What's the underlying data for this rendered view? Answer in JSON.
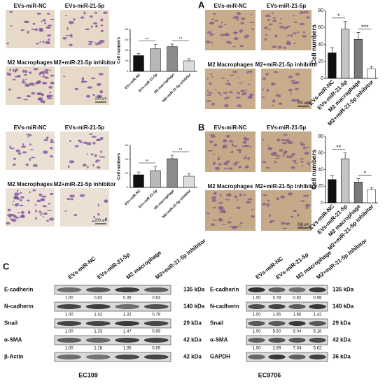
{
  "panel_labels": [
    "A",
    "B",
    "C"
  ],
  "image_grids": [
    {
      "labels": [
        "EVs-miR-NC",
        "EVs-miR-21-5p",
        "M2 Macrophages",
        "M2+miR-21-5p inhibitor"
      ],
      "scale_bar": "200 μm"
    },
    {
      "labels": [
        "EVs-miR-NC",
        "EVs-miR-21-5p",
        "M2 Macrophages",
        "M2+miR-21-5p inhibitor"
      ],
      "scale_bar": "200 μm"
    },
    {
      "labels": [
        "EVs-miR-NC",
        "EVs-miR-21-5p",
        "M2 Macrophages",
        "M2+miR-21-5p inhibitor"
      ],
      "scale_bar": "200 μm"
    },
    {
      "labels": [
        "EVs-miR-NC",
        "EVs-miR-21-5p",
        "M2 Macrophages",
        "M2+miR-21-5p inhibitor"
      ],
      "scale_bar": "200 μm"
    }
  ],
  "chart_data": [
    {
      "type": "bar",
      "ylabel": "Cell numbers",
      "categories": [
        "EVs-miR-NC",
        "EVs-miR-21-5p",
        "M2 macrophage",
        "M2+miR-21-5p inhibitor"
      ],
      "values": [
        30,
        43,
        47,
        20
      ],
      "errors": [
        4,
        8,
        5,
        4
      ],
      "colors": [
        "#111111",
        "#b8b8b8",
        "#8c8c8c",
        "#dcdcdc"
      ],
      "annotations": [
        "**",
        "**"
      ],
      "ylim": [
        0,
        80
      ],
      "yticks": [
        0,
        20,
        40,
        60,
        80
      ]
    },
    {
      "type": "bar",
      "ylabel": "Cell numbers",
      "categories": [
        "EVs-miR-NC",
        "EVs-miR-21-5p",
        "M2 macrophage",
        "M2+miR-21-5p inhibitor"
      ],
      "values": [
        30,
        58,
        46,
        11
      ],
      "errors": [
        6,
        9,
        8,
        3
      ],
      "colors": [
        "#111111",
        "#c4c4c4",
        "#7a7a7a",
        "#ffffff"
      ],
      "annotations": [
        "*",
        "***"
      ],
      "ylim": [
        0,
        80
      ],
      "yticks": [
        0,
        20,
        40,
        60,
        80
      ]
    },
    {
      "type": "bar",
      "ylabel": "Cell numbers",
      "categories": [
        "EVs-miR-NC",
        "EVs-miR-21-5p",
        "M2 macrophage",
        "M2+miR-21-5p inhibitor"
      ],
      "values": [
        18,
        24,
        41,
        16
      ],
      "errors": [
        4,
        6,
        5,
        4
      ],
      "colors": [
        "#111111",
        "#b8b8b8",
        "#8c8c8c",
        "#dcdcdc"
      ],
      "annotations": [
        "**",
        "**"
      ],
      "ylim": [
        0,
        60
      ],
      "yticks": [
        0,
        20,
        40,
        60
      ]
    },
    {
      "type": "bar",
      "ylabel": "Cell numbers",
      "categories": [
        "EVs-miR-NC",
        "EVs-miR-21-5p",
        "M2 macrophage",
        "M2+miR-21-5p inhibitor"
      ],
      "values": [
        28,
        53,
        25,
        16
      ],
      "errors": [
        5,
        7,
        4,
        2
      ],
      "colors": [
        "#111111",
        "#c4c4c4",
        "#7a7a7a",
        "#ffffff"
      ],
      "annotations": [
        "**",
        "*"
      ],
      "ylim": [
        0,
        80
      ],
      "yticks": [
        0,
        20,
        40,
        60,
        80
      ]
    }
  ],
  "blots": [
    {
      "cell_line": "EC109",
      "columns": [
        "EVs-miR-NC",
        "EVs-miR-21-5p",
        "M2 macrophage",
        "M2+miR-21-5p inhibitor"
      ],
      "rows": [
        {
          "protein": "E-cadherin",
          "size": "135 kDa",
          "values": [
            "1.00",
            "0.83",
            "0.36",
            "0.83"
          ]
        },
        {
          "protein": "N-cadherin",
          "size": "140 kDa",
          "values": [
            "1.00",
            "1.42",
            "1.32",
            "0.79"
          ]
        },
        {
          "protein": "Snail",
          "size": "29 kDa",
          "values": [
            "1.00",
            "1.33",
            "1.47",
            "0.99"
          ]
        },
        {
          "protein": "α-SMA",
          "size": "42 kDa",
          "values": [
            "1.00",
            "1.18",
            "1.05",
            "0.89"
          ]
        },
        {
          "protein": "β-Actin",
          "size": "42 kDa",
          "values": []
        }
      ]
    },
    {
      "cell_line": "EC9706",
      "columns": [
        "EVs-miR-NC",
        "EVs-miR-21-5p",
        "M2 macrophage",
        "M2+miR-21-5p inhibitor"
      ],
      "rows": [
        {
          "protein": "E-cadherin",
          "size": "135 kDa",
          "values": [
            "1.00",
            "0.78",
            "0.82",
            "0.98"
          ]
        },
        {
          "protein": "N-cadherin",
          "size": "140 kDa",
          "values": [
            "1.00",
            "1.45",
            "1.65",
            "1.42"
          ]
        },
        {
          "protein": "Snail",
          "size": "29 kDa",
          "values": [
            "1.00",
            "5.50",
            "9.04",
            "5.16"
          ]
        },
        {
          "protein": "α-SMA",
          "size": "42 kDa",
          "values": [
            "1.00",
            "2.89",
            "7.04",
            "5.62"
          ]
        },
        {
          "protein": "GAPDH",
          "size": "36 kDa",
          "values": []
        }
      ]
    }
  ]
}
